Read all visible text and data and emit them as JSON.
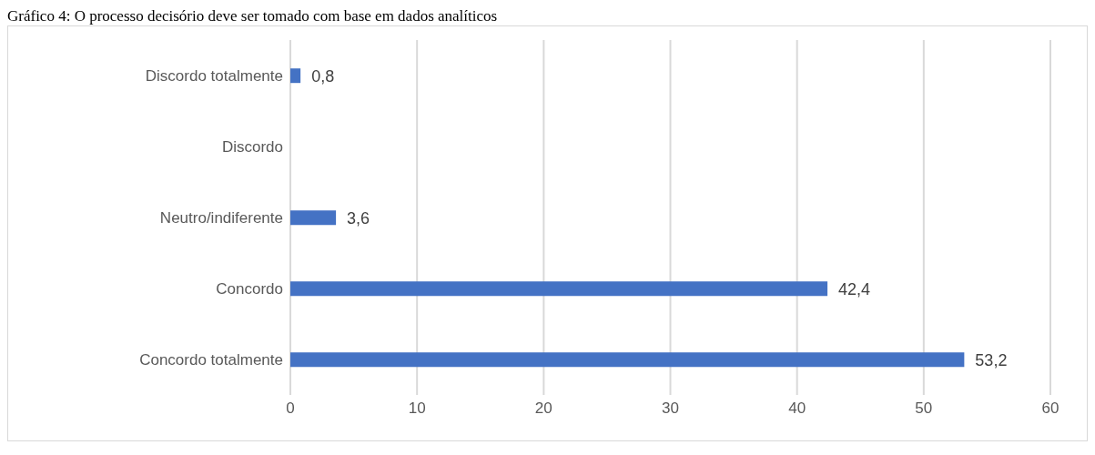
{
  "chart_data": {
    "type": "bar",
    "orientation": "horizontal",
    "title": "Gráfico 4: O processo decisório deve ser tomado com base em dados analíticos",
    "categories": [
      "Discordo totalmente",
      "Discordo",
      "Neutro/indiferente",
      "Concordo",
      "Concordo totalmente"
    ],
    "values": [
      0.8,
      null,
      3.6,
      42.4,
      53.2
    ],
    "value_labels": [
      "0,8",
      null,
      "3,6",
      "42,4",
      "53,2"
    ],
    "color": "#4472c4",
    "xlim": [
      0,
      60
    ],
    "xticks": [
      0,
      10,
      20,
      30,
      40,
      50,
      60
    ],
    "grid": "x",
    "legend": false
  }
}
